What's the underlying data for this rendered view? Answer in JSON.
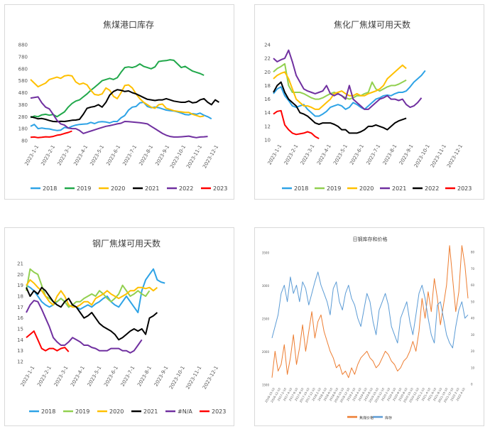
{
  "chart_data": [
    {
      "type": "line",
      "title": "焦煤港口库存",
      "ylim": [
        80,
        880
      ],
      "y_ticks": [
        "880",
        "780",
        "680",
        "580",
        "480",
        "380",
        "280",
        "180",
        "80"
      ],
      "x_ticks": [
        "2023-1-1",
        "2023-2-1",
        "2023-3-1",
        "2023-4-1",
        "2023-5-1",
        "2023-6-1",
        "2023-7-1",
        "2023-8-1",
        "2023-9-1",
        "2023-10-1",
        "2023-11-1",
        "2023-12-1"
      ],
      "grid": false,
      "legend": "bottom",
      "series": [
        {
          "name": "2018",
          "color": "#2ea3e6",
          "values": [
            200,
            215,
            180,
            185,
            180,
            178,
            170,
            165,
            168,
            190,
            185,
            200,
            210,
            215,
            218,
            220,
            232,
            222,
            235,
            238,
            235,
            228,
            240,
            240,
            270,
            290,
            335,
            360,
            365,
            395,
            400,
            365,
            355,
            360,
            355,
            345,
            335,
            330,
            328,
            320,
            310,
            298,
            295,
            305,
            300,
            310,
            292,
            280,
            262
          ]
        },
        {
          "name": "2019",
          "color": "#21a84b",
          "values": [
            272,
            285,
            280,
            295,
            300,
            292,
            298,
            280,
            300,
            320,
            360,
            390,
            410,
            420,
            445,
            470,
            500,
            525,
            552,
            580,
            590,
            600,
            590,
            605,
            650,
            690,
            695,
            690,
            700,
            720,
            700,
            690,
            680,
            695,
            740,
            745,
            748,
            755,
            750,
            720,
            690,
            700,
            680,
            660,
            650,
            640,
            625
          ]
        },
        {
          "name": "2020",
          "color": "#ffc000",
          "values": [
            590,
            560,
            530,
            545,
            560,
            590,
            600,
            610,
            600,
            620,
            625,
            620,
            570,
            550,
            560,
            545,
            500,
            465,
            460,
            470,
            520,
            500,
            450,
            430,
            480,
            540,
            545,
            520,
            470,
            430,
            400,
            380,
            360,
            350,
            380,
            385,
            350,
            340,
            330,
            325,
            320,
            315,
            315,
            300,
            290,
            280,
            285
          ]
        },
        {
          "name": "2021",
          "color": "#000000",
          "values": [
            280,
            272,
            262,
            265,
            258,
            248,
            240,
            238,
            242,
            240,
            245,
            250,
            252,
            258,
            300,
            350,
            360,
            365,
            380,
            360,
            400,
            460,
            490,
            505,
            500,
            490,
            495,
            480,
            470,
            455,
            440,
            425,
            420,
            415,
            420,
            420,
            430,
            420,
            410,
            405,
            400,
            400,
            410,
            395,
            400,
            420,
            430,
            400,
            380,
            420,
            400
          ]
        },
        {
          "name": "2022",
          "color": "#7030a0",
          "values": [
            435,
            440,
            445,
            395,
            360,
            345,
            300,
            250,
            220,
            210,
            185,
            180,
            180,
            165,
            140,
            150,
            160,
            170,
            180,
            190,
            200,
            205,
            212,
            220,
            225,
            240,
            238,
            235,
            232,
            230,
            225,
            220,
            200,
            180,
            160,
            140,
            125,
            115,
            110,
            110,
            112,
            115,
            118,
            110,
            105,
            110,
            112,
            115
          ]
        },
        {
          "name": "2023",
          "color": "#ff0000",
          "values": [
            108,
            110,
            105,
            108,
            112,
            110,
            115,
            125,
            130,
            140,
            148,
            160
          ]
        }
      ]
    },
    {
      "type": "line",
      "title": "焦化厂焦煤可用天数",
      "ylim": [
        10,
        24
      ],
      "y_ticks": [
        "24",
        "22",
        "20",
        "18",
        "16",
        "14",
        "12",
        "10"
      ],
      "x_ticks": [
        "2023-1-1",
        "2023-2-1",
        "2023-3-1",
        "2023-4-1",
        "2023-5-1",
        "2023-6-1",
        "2023-7-1",
        "2023-8-1",
        "2023-9-1",
        "2023-10-1",
        "2023-11-1",
        "2023-12-1"
      ],
      "grid": false,
      "legend": "bottom",
      "series": [
        {
          "name": "2018",
          "color": "#2ea3e6",
          "values": [
            16.8,
            17.5,
            17.8,
            16.5,
            15.8,
            15.0,
            14.8,
            15.0,
            15.2,
            14.5,
            14.0,
            13.5,
            13.5,
            13.8,
            14.2,
            14.8,
            15.0,
            15.2,
            15.0,
            14.5,
            14.8,
            15.5,
            15.2,
            14.8,
            14.5,
            15.0,
            15.5,
            16.0,
            16.2,
            16.5,
            16.6,
            16.5,
            16.8,
            17.0,
            17.0,
            17.2,
            17.8,
            18.5,
            19.0,
            19.5,
            20.2
          ]
        },
        {
          "name": "2019",
          "color": "#92d050",
          "values": [
            20.0,
            20.5,
            20.8,
            21.2,
            18.0,
            17.0,
            17.0,
            17.0,
            16.8,
            16.5,
            16.2,
            16.0,
            16.0,
            16.2,
            16.5,
            16.8,
            17.0,
            16.8,
            16.5,
            16.2,
            16.0,
            16.2,
            16.5,
            16.5,
            16.8,
            17.0,
            18.5,
            17.5,
            17.2,
            17.5,
            17.8,
            18.0,
            18.0,
            18.2,
            18.5,
            18.8
          ]
        },
        {
          "name": "2020",
          "color": "#ffc000",
          "values": [
            19.0,
            19.5,
            19.8,
            20.0,
            19.0,
            17.5,
            16.0,
            15.5,
            15.0,
            15.0,
            14.8,
            14.5,
            14.5,
            15.0,
            15.5,
            16.0,
            16.8,
            17.0,
            17.2,
            16.8,
            16.5,
            16.5,
            16.8,
            16.5,
            16.5,
            16.8,
            17.0,
            17.2,
            17.5,
            18.0,
            19.0,
            19.5,
            20.0,
            20.5,
            21.0,
            20.5
          ]
        },
        {
          "name": "2021",
          "color": "#7030a0",
          "values": [
            22.0,
            21.5,
            21.8,
            22.0,
            23.2,
            21.5,
            19.5,
            18.5,
            17.5,
            17.2,
            17.0,
            16.8,
            17.0,
            17.2,
            18.0,
            16.8,
            16.5,
            16.8,
            16.5,
            16.0,
            18.0,
            16.0,
            15.5,
            15.0,
            14.5,
            14.5,
            15.0,
            15.5,
            16.0,
            16.2,
            16.5,
            16.0,
            16.0,
            15.8,
            16.0,
            15.2,
            14.8,
            15.0,
            15.5,
            16.2
          ]
        },
        {
          "name": "2022",
          "color": "#000000",
          "values": [
            17.0,
            18.0,
            18.5,
            17.0,
            16.0,
            15.5,
            15.0,
            14.0,
            13.8,
            13.5,
            13.0,
            12.5,
            12.3,
            12.5,
            12.5,
            12.5,
            12.3,
            12.0,
            11.5,
            11.5,
            11.0,
            11.0,
            11.0,
            11.2,
            11.5,
            12.0,
            12.0,
            12.2,
            12.0,
            11.8,
            11.5,
            12.0,
            12.5,
            12.8,
            13.0,
            13.2
          ]
        },
        {
          "name": "2023",
          "color": "#ff0000",
          "values": [
            13.8,
            14.2,
            14.3,
            12.2,
            11.5,
            11.0,
            10.8,
            10.9,
            11.0,
            11.2,
            11.0,
            10.5,
            10.2
          ]
        }
      ]
    },
    {
      "type": "line",
      "title": "钢厂焦煤可用天数",
      "ylim": [
        12,
        21
      ],
      "y_ticks": [
        "21",
        "20",
        "19",
        "18",
        "17",
        "16",
        "15",
        "14",
        "13",
        "12"
      ],
      "x_ticks": [
        "2023-1-1",
        "2023-2-1",
        "2023-3-1",
        "2023-4-1",
        "2023-5-1",
        "2023-6-1",
        "2023-7-1",
        "2023-8-1",
        "2023-9-1",
        "2023-10-1",
        "2023-11-1",
        "2023-12-1"
      ],
      "grid": false,
      "legend": "bottom",
      "series": [
        {
          "name": "2018",
          "color": "#2ea3e6",
          "values": [
            19.0,
            18.8,
            18.5,
            18.0,
            17.5,
            17.2,
            17.0,
            17.2,
            17.5,
            17.8,
            17.5,
            17.0,
            17.2,
            17.0,
            16.8,
            17.0,
            17.2,
            17.0,
            17.3,
            17.5,
            17.8,
            18.0,
            17.5,
            17.2,
            17.0,
            17.5,
            18.0,
            17.5,
            17.0,
            16.5,
            18.5,
            19.5,
            20.0,
            20.5,
            19.5,
            19.3,
            19.2
          ]
        },
        {
          "name": "2019",
          "color": "#92d050",
          "values": [
            18.5,
            20.5,
            20.2,
            20.0,
            19.0,
            18.0,
            17.8,
            17.5,
            17.5,
            17.8,
            17.5,
            17.0,
            17.2,
            17.5,
            17.5,
            17.8,
            18.0,
            18.2,
            18.0,
            18.5,
            18.2,
            17.8,
            17.5,
            17.8,
            18.2,
            19.0,
            18.5,
            18.0,
            18.2,
            18.5,
            18.2,
            18.0,
            18.5
          ]
        },
        {
          "name": "2020",
          "color": "#ffc000",
          "values": [
            19.0,
            19.5,
            19.2,
            18.8,
            18.5,
            18.0,
            17.5,
            17.2,
            18.0,
            18.5,
            18.0,
            17.2,
            17.0,
            17.0,
            17.2,
            17.5,
            17.5,
            17.2,
            17.8,
            18.0,
            18.2,
            18.5,
            18.2,
            18.0,
            17.8,
            18.0,
            18.2,
            18.5,
            18.5,
            18.8,
            18.8,
            18.7,
            18.8,
            18.5,
            18.8
          ]
        },
        {
          "name": "2021",
          "color": "#000000",
          "values": [
            18.8,
            18.0,
            18.5,
            18.2,
            18.8,
            18.5,
            18.0,
            17.5,
            17.2,
            17.0,
            17.5,
            17.8,
            17.2,
            17.0,
            16.5,
            16.0,
            16.2,
            16.5,
            16.0,
            15.5,
            15.2,
            15.0,
            14.8,
            14.5,
            14.0,
            14.2,
            14.5,
            14.8,
            15.0,
            14.8,
            15.0,
            14.5,
            16.0,
            16.2,
            16.5
          ]
        },
        {
          "name": "#N/A",
          "color": "#7030a0",
          "values": [
            16.5,
            17.2,
            17.6,
            17.5,
            16.8,
            16.0,
            15.2,
            14.2,
            13.8,
            13.5,
            13.5,
            13.8,
            14.2,
            14.0,
            13.8,
            13.5,
            13.5,
            13.3,
            13.2,
            13.0,
            13.0,
            13.0,
            13.2,
            13.2,
            13.2,
            13.0,
            13.0,
            12.8,
            13.0,
            13.5,
            14.0
          ]
        },
        {
          "name": "2023",
          "color": "#ff0000",
          "values": [
            14.2,
            14.5,
            14.8,
            14.0,
            13.2,
            13.0,
            13.2,
            13.2,
            13.0,
            13.2,
            13.3,
            12.9
          ]
        }
      ]
    },
    {
      "type": "line",
      "title": "日钢库存和价格",
      "ylim": [
        1500,
        3500
      ],
      "y2lim": [
        0,
        80
      ],
      "y_ticks": [
        "3500",
        "3000",
        "2500",
        "2000",
        "1500"
      ],
      "y2_ticks": [
        "80",
        "70",
        "60",
        "50",
        "40",
        "30",
        "20",
        "10",
        "0"
      ],
      "x_ticks": [
        "2016-10-10",
        "2016-12-10",
        "2017-2-10",
        "2017-4-10",
        "2017-6-10",
        "2017-8-10",
        "2017-10-10",
        "2017-12-10",
        "2018-2-10",
        "2018-4-10",
        "2018-6-10",
        "2018-8-10",
        "2018-10-10",
        "2018-12-10",
        "2019-2-10",
        "2019-4-10",
        "2019-6-10",
        "2019-8-10",
        "2019-10-10",
        "2019-12-10",
        "2020-2-10",
        "2020-4-10",
        "2020-6-10",
        "2020-8-10",
        "2020-10-10",
        "2020-12-10",
        "2021-2-10",
        "2021-4-10",
        "2021-6-10",
        "2021-8-10",
        "2021-10-10",
        "2021-12-10",
        "2022-2-10",
        "2022-4-10"
      ],
      "grid": false,
      "legend": "bottom",
      "series": [
        {
          "name": "焦煤价格",
          "color": "#ed7d31",
          "axis": "left",
          "values": [
            1600,
            2000,
            1700,
            1800,
            2100,
            1650,
            1900,
            2250,
            1800,
            2050,
            2400,
            2000,
            2300,
            2600,
            2200,
            2450,
            2550,
            2300,
            2150,
            2000,
            1900,
            1750,
            1800,
            1650,
            1700,
            1600,
            1750,
            1650,
            1800,
            1900,
            1950,
            2000,
            1900,
            1850,
            1750,
            1800,
            1900,
            2000,
            1950,
            1850,
            1800,
            1700,
            1750,
            1850,
            1900,
            2000,
            2150,
            2000,
            2300,
            2800,
            2500,
            2900,
            2600,
            3100,
            2800,
            2400,
            2700,
            3000,
            3600,
            3100,
            2600,
            2900,
            3600,
            3300,
            2800
          ]
        },
        {
          "name": "库存",
          "color": "#5b9bd5",
          "axis": "right",
          "values": [
            28,
            35,
            42,
            55,
            60,
            50,
            65,
            55,
            60,
            50,
            62,
            58,
            48,
            55,
            62,
            68,
            60,
            55,
            50,
            42,
            58,
            62,
            50,
            45,
            55,
            60,
            52,
            48,
            40,
            35,
            45,
            55,
            50,
            38,
            30,
            45,
            50,
            55,
            48,
            35,
            30,
            25,
            40,
            45,
            50,
            38,
            30,
            42,
            55,
            60,
            52,
            40,
            30,
            25,
            48,
            50,
            40,
            30,
            25,
            22,
            35,
            45,
            50,
            40,
            42
          ]
        }
      ]
    }
  ]
}
